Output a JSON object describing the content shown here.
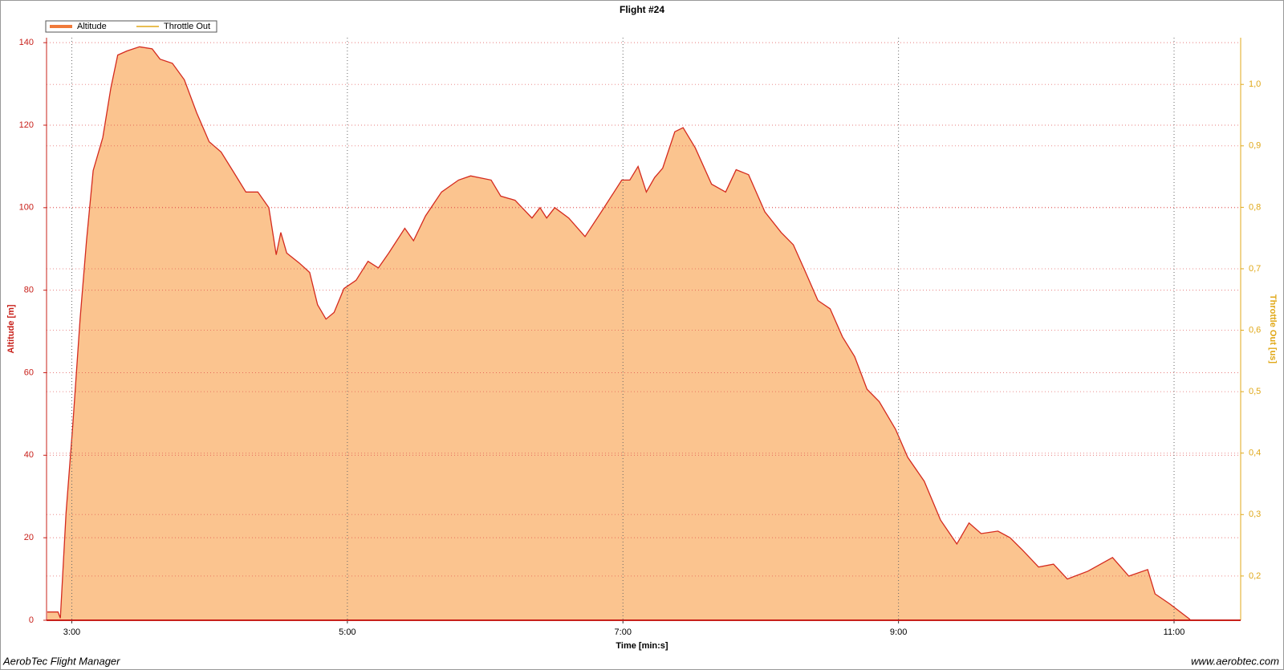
{
  "chart_data": {
    "type": "area",
    "title": "Flight #24",
    "x_label": "Time [min:s]",
    "y_label": "Altitude [m]",
    "y2_label": "Throttle Out [us]",
    "footer_left": "AerobTec Flight Manager",
    "footer_right": "www.aerobtec.com",
    "x": [
      169.3,
      174,
      175,
      177.5,
      180.4,
      183.6,
      186.4,
      189.3,
      193.5,
      197,
      200,
      204,
      209.5,
      215,
      218.4,
      223.8,
      229,
      234.4,
      239.8,
      245,
      250.5,
      255.8,
      261,
      265.8,
      269,
      271,
      273.6,
      279,
      283.6,
      287,
      290.7,
      294.2,
      298.5,
      303.8,
      309,
      313.5,
      318,
      325,
      328.8,
      334,
      341,
      348.4,
      353.7,
      362.6,
      366.8,
      373,
      380.4,
      383.9,
      386.8,
      390.3,
      396.4,
      403.5,
      410.6,
      419.5,
      423,
      426.6,
      430.2,
      433.8,
      437.3,
      442.6,
      446.2,
      451.5,
      458.6,
      464.7,
      469.3,
      474.7,
      481.8,
      488.9,
      494.2,
      499.6,
      504.9,
      510.2,
      515.6,
      520.9,
      526.3,
      531.6,
      538.7,
      544,
      551.2,
      558.3,
      565.4,
      570.7,
      576,
      583.3,
      588.6,
      594,
      601,
      607.5,
      613.5,
      622.5,
      633.2,
      640.3,
      648.5,
      651.7,
      658,
      667
    ],
    "series": [
      {
        "name": "Altitude",
        "color": "#d42a1e",
        "fill": "#fbc48f",
        "legend_color": "#f07a3a",
        "values": [
          2,
          2,
          0.5,
          26,
          47,
          73,
          92,
          109,
          117,
          129,
          137,
          138,
          139,
          138.5,
          136,
          135,
          131,
          123,
          116,
          113.5,
          108.6,
          103.8,
          103.8,
          100,
          88.6,
          94,
          89,
          86.6,
          84.3,
          76.5,
          73,
          74.6,
          80.4,
          82.4,
          87,
          85.4,
          89,
          95,
          92,
          98,
          103.8,
          106.7,
          107.7,
          106.7,
          102.8,
          101.8,
          97.5,
          100,
          97.5,
          100,
          97.5,
          93,
          99,
          106.7,
          106.7,
          110,
          103.8,
          107.3,
          109.6,
          118.4,
          119.4,
          114.5,
          105.7,
          103.8,
          109.2,
          108,
          99,
          94,
          91,
          84.3,
          77.5,
          75.5,
          68.7,
          63.9,
          56,
          53,
          46.3,
          39.5,
          33.7,
          24.3,
          18.5,
          23.6,
          21,
          21.6,
          20,
          17,
          12.9,
          13.6,
          10,
          11.9,
          15.2,
          10.7,
          12.3,
          6.4,
          4,
          0.2
        ]
      },
      {
        "name": "Throttle Out",
        "color": "#e0a818",
        "axis": "y2",
        "x": [],
        "values": []
      }
    ],
    "xlim": [
      169,
      689
    ],
    "xticks": [
      {
        "value": 180,
        "label": "3:00"
      },
      {
        "value": 300,
        "label": "5:00"
      },
      {
        "value": 420,
        "label": "7:00"
      },
      {
        "value": 540,
        "label": "9:00"
      },
      {
        "value": 660,
        "label": "11:00"
      }
    ],
    "ylim": [
      0,
      141.2
    ],
    "yticks": [
      0,
      20,
      40,
      60,
      80,
      100,
      120,
      140
    ],
    "y2lim": [
      0.128,
      1.076
    ],
    "y2ticks": [
      {
        "value": 0.2,
        "label": "0,2"
      },
      {
        "value": 0.3,
        "label": "0,3"
      },
      {
        "value": 0.4,
        "label": "0,4"
      },
      {
        "value": 0.5,
        "label": "0,5"
      },
      {
        "value": 0.6,
        "label": "0,6"
      },
      {
        "value": 0.7,
        "label": "0,7"
      },
      {
        "value": 0.8,
        "label": "0,8"
      },
      {
        "value": 0.9,
        "label": "0,9"
      },
      {
        "value": 1.0,
        "label": "1,0"
      }
    ],
    "grid": true
  }
}
